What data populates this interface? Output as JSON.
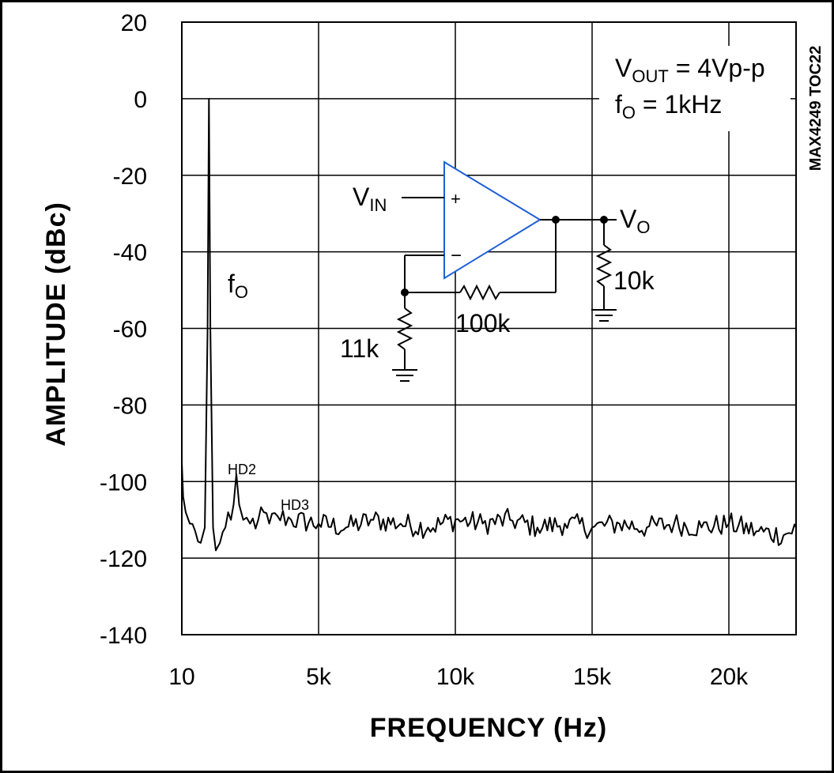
{
  "chart_data": {
    "type": "line",
    "title": "",
    "figure_id": "MAX4249 TOC22",
    "xlabel": "FREQUENCY (Hz)",
    "ylabel": "AMPLITUDE (dBc)",
    "xlim": [
      10,
      22500
    ],
    "ylim": [
      -140,
      20
    ],
    "x_tick_values": [
      10,
      5000,
      10000,
      15000,
      20000
    ],
    "x_tick_labels": [
      "10",
      "5k",
      "10k",
      "15k",
      "20k"
    ],
    "y_tick_values": [
      20,
      0,
      -20,
      -40,
      -60,
      -80,
      -100,
      -120,
      -140
    ],
    "y_tick_labels": [
      "20",
      "0",
      "-20",
      "-40",
      "-60",
      "-80",
      "-100",
      "-120",
      "-140"
    ],
    "grid": true,
    "series": [
      {
        "noise_floor_db": -111,
        "points": [
          [
            10,
            -95
          ],
          [
            60,
            -104
          ],
          [
            150,
            -108
          ],
          [
            300,
            -111
          ],
          [
            500,
            -113
          ],
          [
            700,
            -116
          ],
          [
            850,
            -112
          ],
          [
            950,
            -60
          ],
          [
            1000,
            0
          ],
          [
            1050,
            -60
          ],
          [
            1150,
            -112
          ],
          [
            1250,
            -118
          ],
          [
            1400,
            -116
          ],
          [
            1600,
            -112
          ],
          [
            1800,
            -110
          ],
          [
            1900,
            -106
          ],
          [
            2000,
            -98
          ],
          [
            2100,
            -106
          ],
          [
            2250,
            -110
          ],
          [
            2500,
            -111
          ],
          [
            2800,
            -110
          ],
          [
            3000,
            -108
          ],
          [
            3200,
            -111
          ],
          [
            3500,
            -109
          ],
          [
            4000,
            -110
          ],
          [
            5000,
            -111
          ],
          [
            6000,
            -112
          ],
          [
            7000,
            -110
          ],
          [
            8000,
            -111
          ],
          [
            9000,
            -112
          ],
          [
            10000,
            -110
          ],
          [
            11000,
            -111
          ],
          [
            12000,
            -110
          ],
          [
            13000,
            -112
          ],
          [
            14000,
            -111
          ],
          [
            15000,
            -112
          ],
          [
            16000,
            -111
          ],
          [
            17000,
            -112
          ],
          [
            18000,
            -111
          ],
          [
            19000,
            -112
          ],
          [
            20000,
            -111
          ],
          [
            21000,
            -113
          ],
          [
            22000,
            -114
          ],
          [
            22500,
            -112
          ]
        ]
      }
    ],
    "annotations": {
      "fo_main": "f",
      "fo_sub": "O",
      "hd2": "HD2",
      "hd3": "HD3",
      "vout_prefix": "V",
      "vout_sub": "OUT",
      "vout_value": " = 4Vp-p",
      "f0_prefix": "f",
      "f0_sub": "O",
      "f0_value": " = 1kHz"
    },
    "circuit": {
      "vin_prefix": "V",
      "vin_sub": "IN",
      "vo_prefix": "V",
      "vo_sub": "O",
      "plus": "+",
      "minus": "−",
      "r_feedback": "100k",
      "r_ground": "11k",
      "r_load": "10k"
    }
  },
  "colors": {
    "line": "#000000",
    "grid": "#000000",
    "opamp": "#1f5fd6",
    "background": "#ffffff"
  }
}
